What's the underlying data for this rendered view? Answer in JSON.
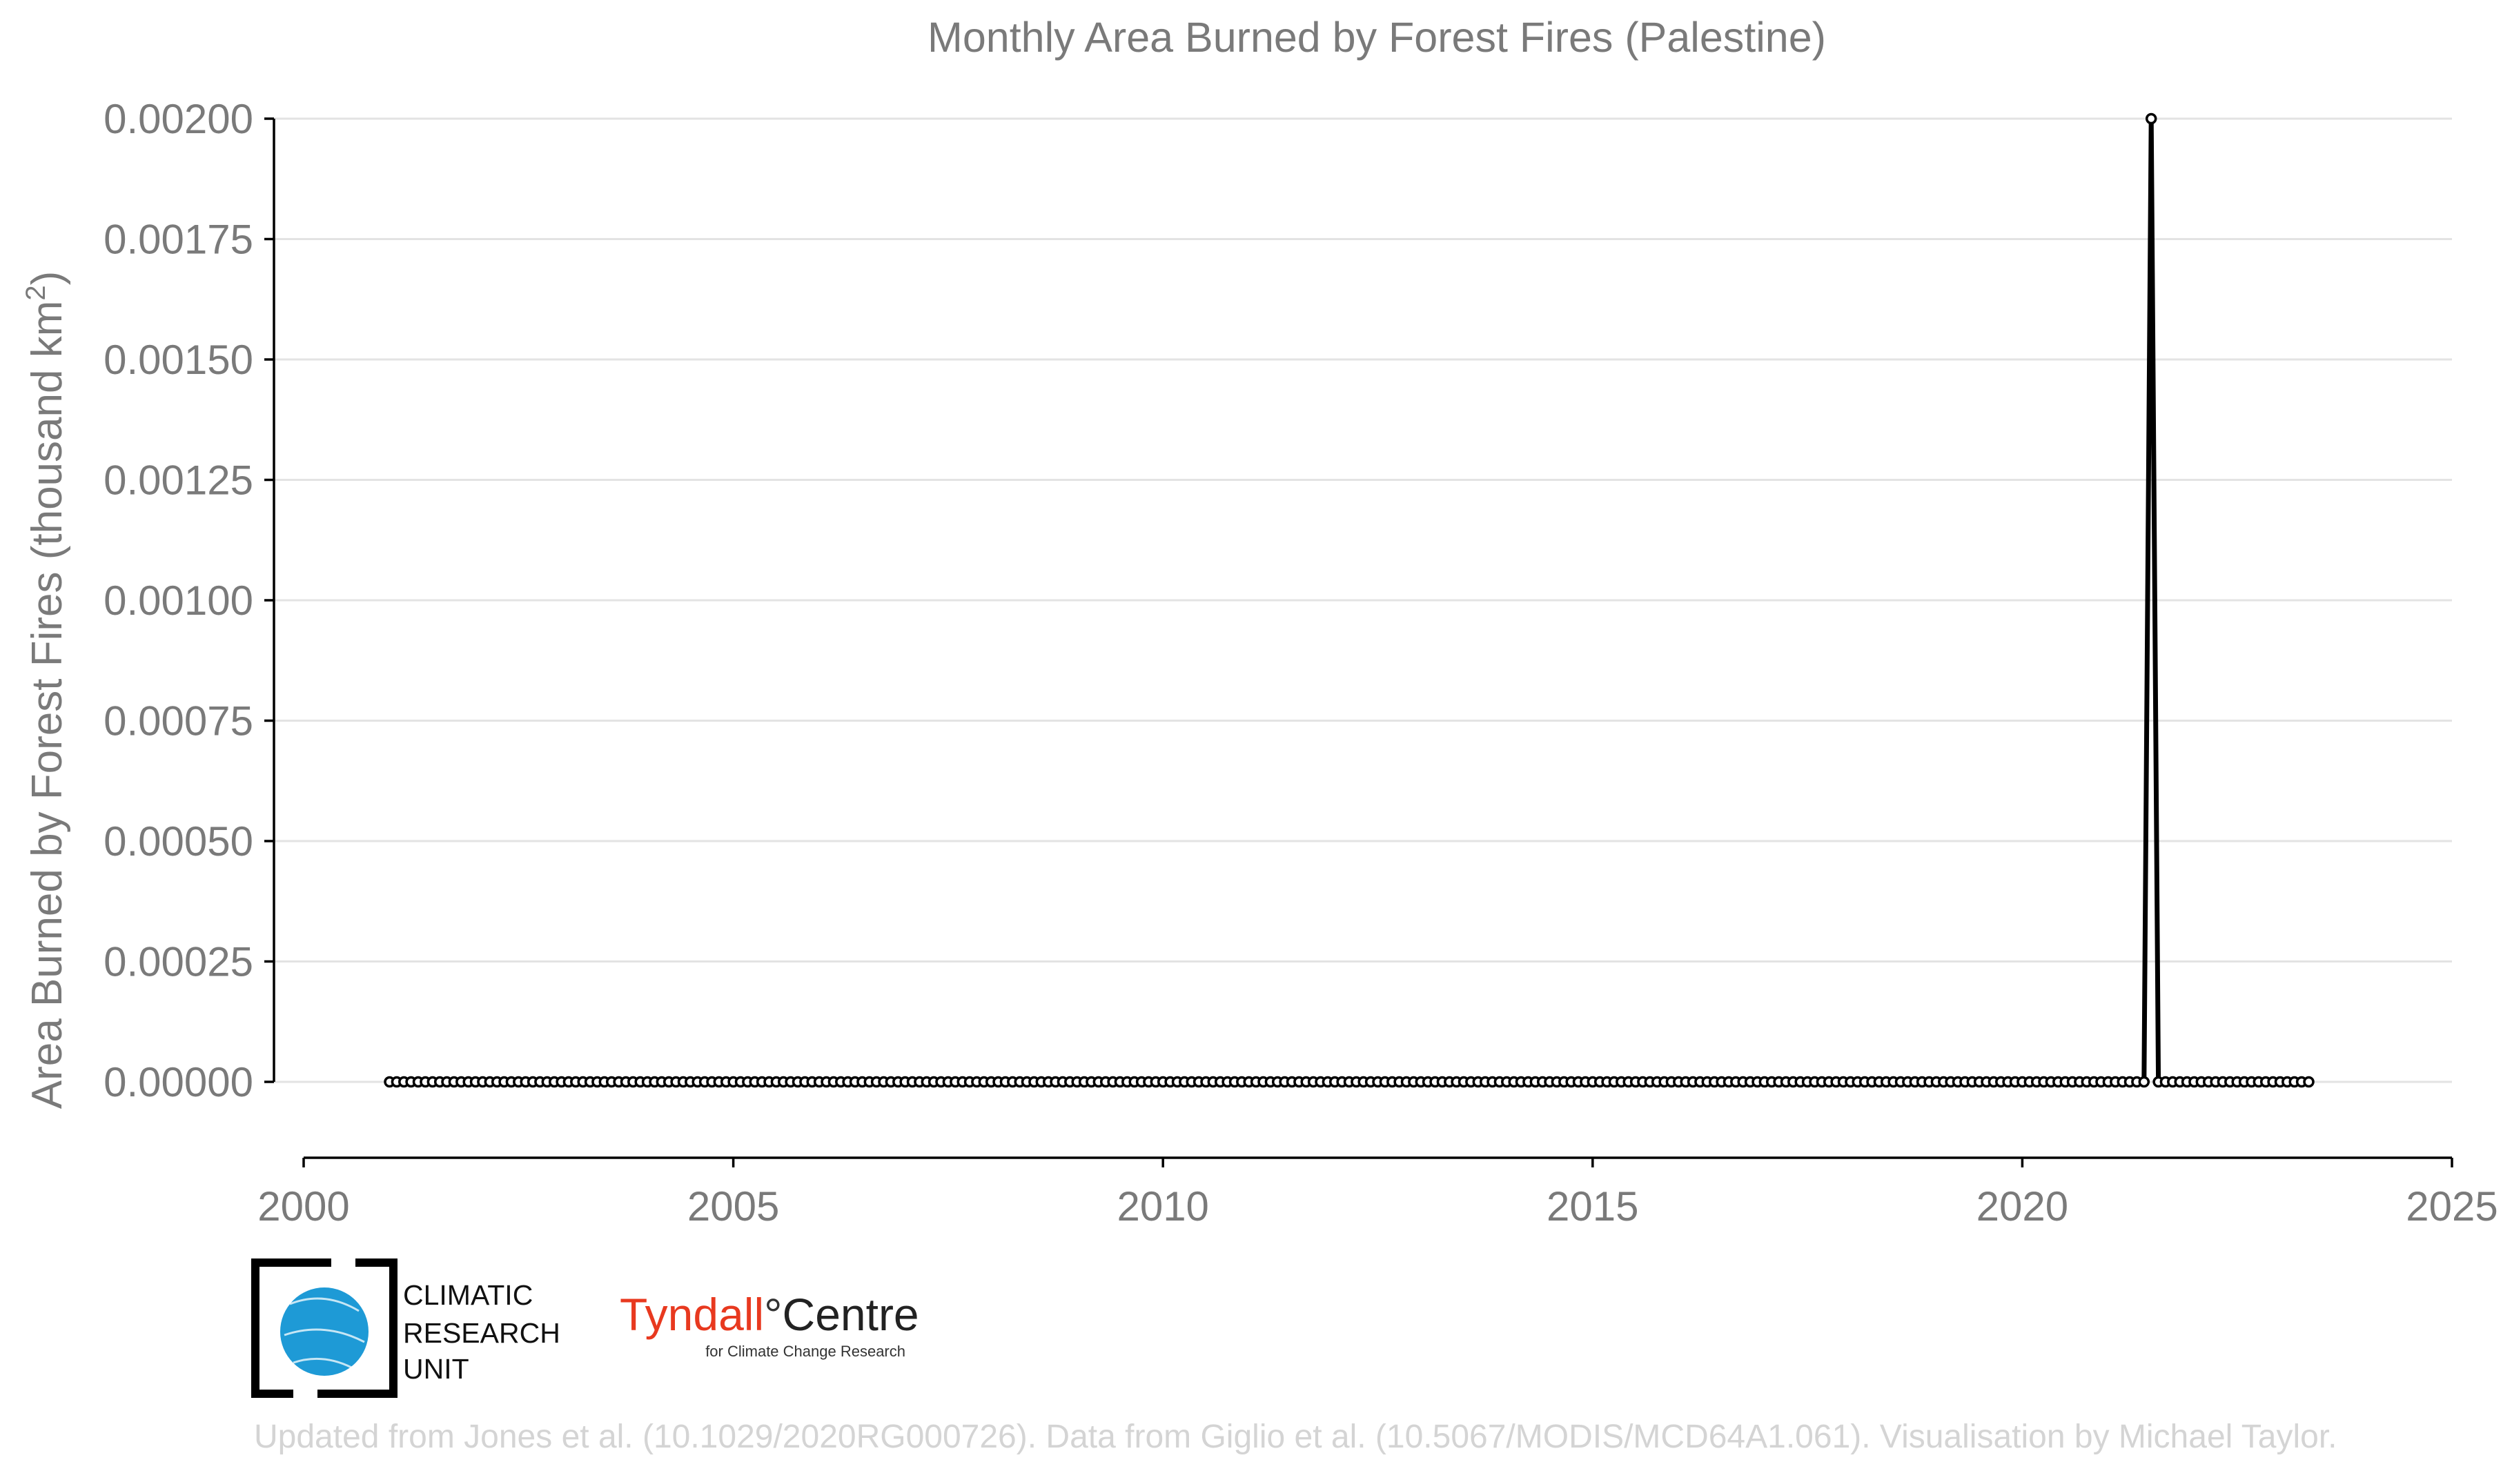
{
  "chart_data": {
    "type": "line",
    "title": "Monthly Area Burned by Forest Fires (Palestine)",
    "ylabel": "Area Burned by Forest Fires (thousand km",
    "ylabel_superscript": "2",
    "ylabel_close": ")",
    "xlabel": "",
    "xlim": [
      2000,
      2025
    ],
    "ylim": [
      0,
      0.002
    ],
    "x_ticks": [
      "2000",
      "2005",
      "2010",
      "2015",
      "2020",
      "2025"
    ],
    "y_ticks": [
      "0.00000",
      "0.00025",
      "0.00050",
      "0.00075",
      "0.00100",
      "0.00125",
      "0.00150",
      "0.00175",
      "0.00200"
    ],
    "grid": "horizontal",
    "series": [
      {
        "start": "2001-01",
        "end": "2023-05",
        "frequency": "monthly",
        "default_value": 0,
        "nonzero_points": [
          {
            "date": "2021-07",
            "value": 0.002
          }
        ]
      }
    ]
  },
  "logos": {
    "cru_lines": [
      "CLIMATIC",
      "RESEARCH",
      "UNIT"
    ],
    "tyndall_main": "Tyndall",
    "tyndall_degree": "°",
    "tyndall_centre": "Centre",
    "tyndall_sub": "for Climate Change Research"
  },
  "credit": "Updated from Jones et al. (10.1029/2020RG000726). Data from Giglio et al. (10.5067/MODIS/MCD64A1.061). Visualisation by Michael Taylor.",
  "colors": {
    "line": "#000000",
    "axis_text": "#7a7a7a",
    "grid": "#e3e3e3",
    "credit_text": "#d4d4d4",
    "tyndall_red": "#e8391f",
    "cru_blue": "#1e9ad6"
  }
}
